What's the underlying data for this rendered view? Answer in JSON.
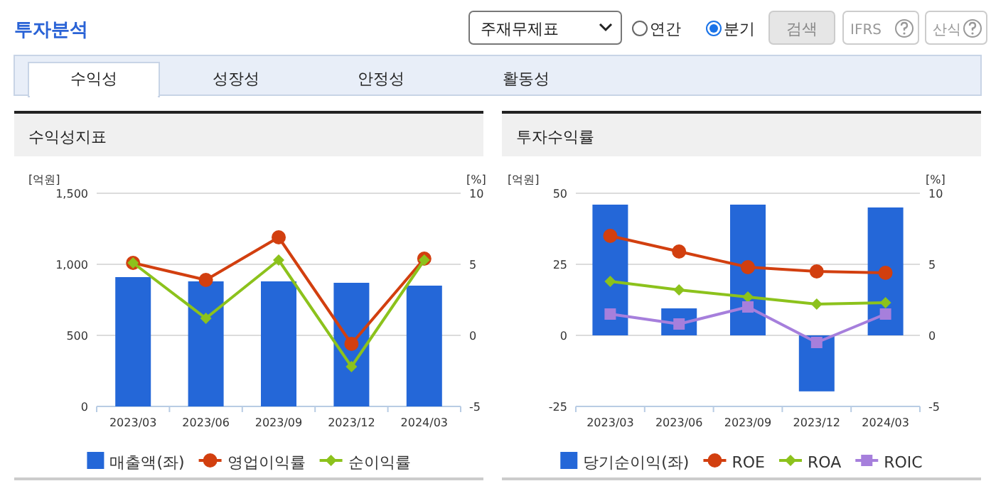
{
  "chart_data": [
    {
      "type": "bar",
      "title": "수익성지표",
      "ylabel": "[억원]",
      "y2label": "[%]",
      "annotations": [
        "투자분석",
        "주재무제표",
        "연간",
        "분기",
        "검색",
        "IFRS",
        "산식",
        "수익성",
        "성장성",
        "안정성",
        "활동성"
      ],
      "categories": [
        "2023/03",
        "2023/06",
        "2023/09",
        "2023/12",
        "2024/03"
      ],
      "series": [
        {
          "name": "매출액(좌)",
          "color": "#2467d8",
          "values": [
            910,
            880,
            880,
            870,
            850
          ]
        },
        {
          "name": "영업이익률",
          "type": "line",
          "axis": "y2",
          "marker": "circle",
          "color": "#d23f0f",
          "values": [
            5.1,
            3.9,
            6.9,
            -0.6,
            5.4
          ]
        },
        {
          "name": "순이익률",
          "type": "line",
          "axis": "y2",
          "marker": "diamond",
          "color": "#8cc21c",
          "values": [
            5.1,
            1.2,
            5.3,
            -2.2,
            5.3
          ]
        }
      ],
      "ylim": [
        0,
        1500
      ],
      "yticks": [
        0,
        500,
        {
          "value": 1000,
          "label": "1,000"
        },
        {
          "value": 1500,
          "label": "1,500"
        }
      ],
      "y2lim": [
        -5,
        10
      ],
      "y2ticks": [
        -5,
        0,
        5,
        10
      ],
      "grid": "y",
      "legend": "bottom"
    },
    {
      "type": "bar",
      "title": "투자수익률",
      "ylabel": "[억원]",
      "y2label": "[%]",
      "categories": [
        "2023/03",
        "2023/06",
        "2023/09",
        "2023/12",
        "2024/03"
      ],
      "series": [
        {
          "name": "당기순이익(좌)",
          "color": "#2467d8",
          "values": [
            46,
            9.5,
            46,
            -19.7,
            45
          ]
        },
        {
          "name": "ROE",
          "type": "line",
          "axis": "y2",
          "marker": "circle",
          "color": "#d23f0f",
          "values": [
            7.0,
            5.9,
            4.8,
            4.5,
            4.4
          ]
        },
        {
          "name": "ROA",
          "type": "line",
          "axis": "y2",
          "marker": "diamond",
          "color": "#8cc21c",
          "values": [
            3.8,
            3.2,
            2.7,
            2.2,
            2.3
          ]
        },
        {
          "name": "ROIC",
          "type": "line",
          "axis": "y2",
          "marker": "square",
          "color": "#a67fdc",
          "values": [
            1.5,
            0.8,
            2.0,
            -0.5,
            1.5
          ]
        }
      ],
      "ylim": [
        -25,
        50
      ],
      "yticks": [
        -25,
        0,
        25,
        50
      ],
      "y2lim": [
        -5,
        10
      ],
      "y2ticks": [
        -5,
        0,
        5,
        10
      ],
      "grid": "y",
      "legend": "bottom"
    }
  ]
}
